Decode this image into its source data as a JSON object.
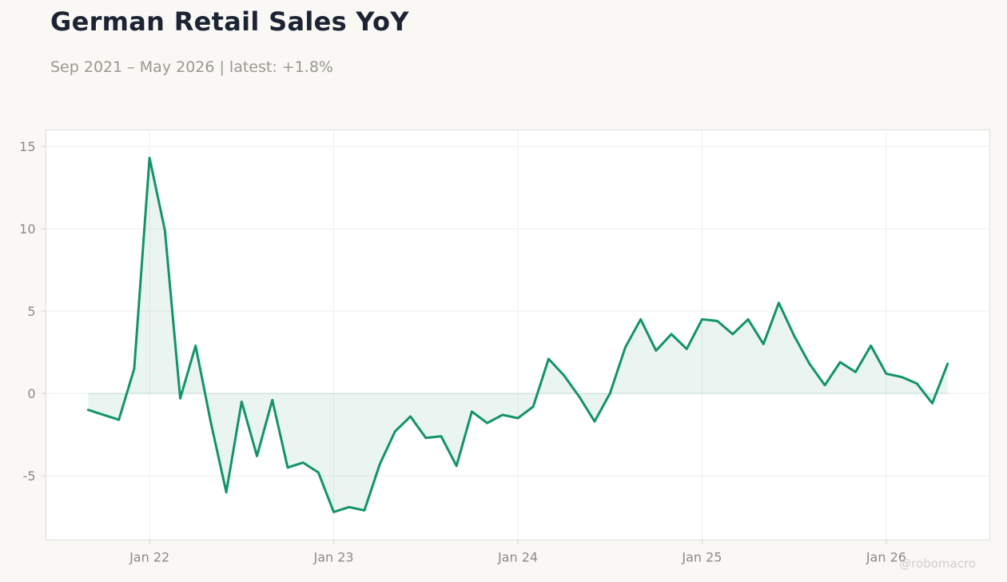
{
  "chart_data": {
    "type": "area",
    "title": "German Retail Sales YoY",
    "subtitle": "Sep 2021 – May 2026 | latest: +1.8%",
    "xlabel": "",
    "ylabel": "",
    "x_start": "2021-09",
    "x_end": "2026-05",
    "x_ticks": [
      {
        "date": "2022-01",
        "label": "Jan 22"
      },
      {
        "date": "2023-01",
        "label": "Jan 23"
      },
      {
        "date": "2024-01",
        "label": "Jan 24"
      },
      {
        "date": "2025-01",
        "label": "Jan 25"
      },
      {
        "date": "2026-01",
        "label": "Jan 26"
      }
    ],
    "y_ticks": [
      {
        "value": 15,
        "label": "15"
      },
      {
        "value": 10,
        "label": "10"
      },
      {
        "value": 5,
        "label": "5"
      },
      {
        "value": 0,
        "label": "0"
      },
      {
        "value": -5,
        "label": "-5"
      }
    ],
    "ylim": [
      -8.9,
      16
    ],
    "grid": true,
    "line_color": "#129466",
    "fill_color": "#129466",
    "series": [
      {
        "values": [
          {
            "x": "2021-09",
            "y": -1.0
          },
          {
            "x": "2021-10",
            "y": -1.3
          },
          {
            "x": "2021-11",
            "y": -1.6
          },
          {
            "x": "2021-12",
            "y": 1.5
          },
          {
            "x": "2022-01",
            "y": 14.3
          },
          {
            "x": "2022-02",
            "y": 9.9
          },
          {
            "x": "2022-03",
            "y": -0.3
          },
          {
            "x": "2022-04",
            "y": 2.9
          },
          {
            "x": "2022-05",
            "y": -1.8
          },
          {
            "x": "2022-06",
            "y": -6.0
          },
          {
            "x": "2022-07",
            "y": -0.5
          },
          {
            "x": "2022-08",
            "y": -3.8
          },
          {
            "x": "2022-09",
            "y": -0.4
          },
          {
            "x": "2022-10",
            "y": -4.5
          },
          {
            "x": "2022-11",
            "y": -4.2
          },
          {
            "x": "2022-12",
            "y": -4.8
          },
          {
            "x": "2023-01",
            "y": -7.2
          },
          {
            "x": "2023-02",
            "y": -6.9
          },
          {
            "x": "2023-03",
            "y": -7.1
          },
          {
            "x": "2023-04",
            "y": -4.3
          },
          {
            "x": "2023-05",
            "y": -2.3
          },
          {
            "x": "2023-06",
            "y": -1.4
          },
          {
            "x": "2023-07",
            "y": -2.7
          },
          {
            "x": "2023-08",
            "y": -2.6
          },
          {
            "x": "2023-09",
            "y": -4.4
          },
          {
            "x": "2023-10",
            "y": -1.1
          },
          {
            "x": "2023-11",
            "y": -1.8
          },
          {
            "x": "2023-12",
            "y": -1.3
          },
          {
            "x": "2024-01",
            "y": -1.5
          },
          {
            "x": "2024-02",
            "y": -0.8
          },
          {
            "x": "2024-03",
            "y": 2.1
          },
          {
            "x": "2024-04",
            "y": 1.1
          },
          {
            "x": "2024-05",
            "y": -0.2
          },
          {
            "x": "2024-06",
            "y": -1.7
          },
          {
            "x": "2024-07",
            "y": 0.0
          },
          {
            "x": "2024-08",
            "y": 2.8
          },
          {
            "x": "2024-09",
            "y": 4.5
          },
          {
            "x": "2024-10",
            "y": 2.6
          },
          {
            "x": "2024-11",
            "y": 3.6
          },
          {
            "x": "2024-12",
            "y": 2.7
          },
          {
            "x": "2025-01",
            "y": 4.5
          },
          {
            "x": "2025-02",
            "y": 4.4
          },
          {
            "x": "2025-03",
            "y": 3.6
          },
          {
            "x": "2025-04",
            "y": 4.5
          },
          {
            "x": "2025-05",
            "y": 3.0
          },
          {
            "x": "2025-06",
            "y": 5.5
          },
          {
            "x": "2025-07",
            "y": 3.5
          },
          {
            "x": "2025-08",
            "y": 1.8
          },
          {
            "x": "2025-09",
            "y": 0.5
          },
          {
            "x": "2025-10",
            "y": 1.9
          },
          {
            "x": "2025-11",
            "y": 1.3
          },
          {
            "x": "2025-12",
            "y": 2.9
          },
          {
            "x": "2026-01",
            "y": 1.2
          },
          {
            "x": "2026-02",
            "y": 1.0
          },
          {
            "x": "2026-03",
            "y": 0.6
          },
          {
            "x": "2026-04",
            "y": -0.6
          },
          {
            "x": "2026-05",
            "y": 1.8
          }
        ]
      }
    ],
    "watermark": "@robomacro"
  }
}
